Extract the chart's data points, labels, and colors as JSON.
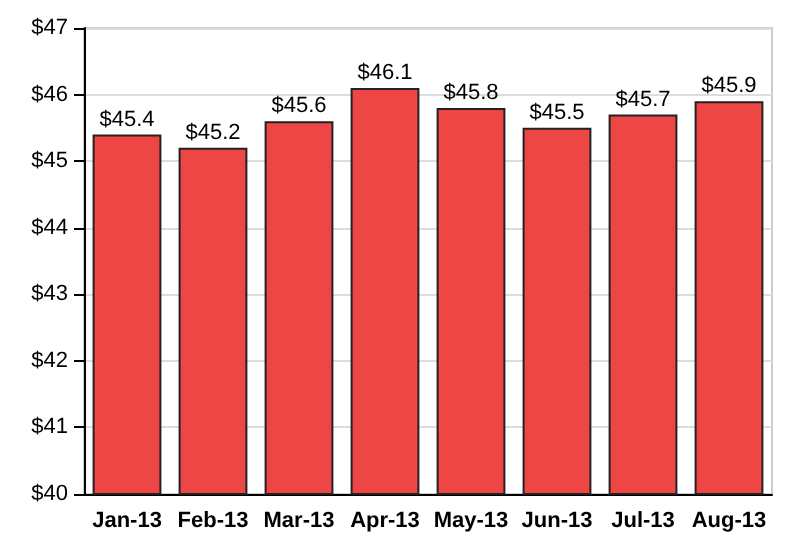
{
  "chart_data": {
    "type": "bar",
    "categories": [
      "Jan-13",
      "Feb-13",
      "Mar-13",
      "Apr-13",
      "May-13",
      "Jun-13",
      "Jul-13",
      "Aug-13"
    ],
    "values": [
      45.4,
      45.2,
      45.6,
      46.1,
      45.8,
      45.5,
      45.7,
      45.9
    ],
    "value_labels": [
      "$45.4",
      "$45.2",
      "$45.6",
      "$46.1",
      "$45.8",
      "$45.5",
      "$45.7",
      "$45.9"
    ],
    "color": "#ee4545",
    "ylim": [
      40,
      47
    ],
    "yticks": [
      {
        "value": 40,
        "label": "$40"
      },
      {
        "value": 41,
        "label": "$41"
      },
      {
        "value": 42,
        "label": "$42"
      },
      {
        "value": 43,
        "label": "$43"
      },
      {
        "value": 44,
        "label": "$44"
      },
      {
        "value": 45,
        "label": "$45"
      },
      {
        "value": 46,
        "label": "$46"
      },
      {
        "value": 47,
        "label": "$47"
      }
    ],
    "grid": "y"
  }
}
